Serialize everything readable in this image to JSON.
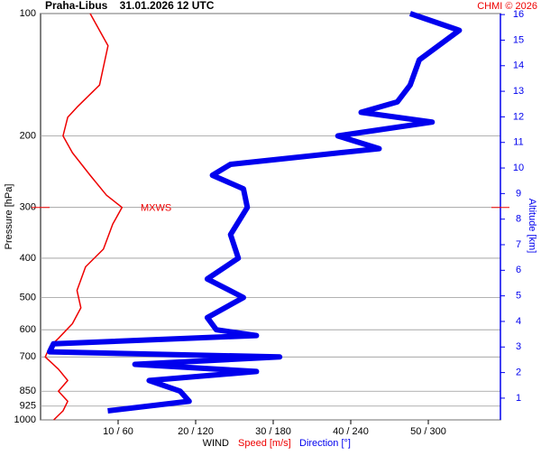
{
  "chart_data": {
    "type": "profile",
    "title": "Praha-Libus    31.01.2026 12 UTC",
    "credit": "CHMI © 2026",
    "ylabel": "Pressure [hPa]",
    "y2label": "Altitude [km]",
    "xlabel": "WIND",
    "annotation": "MXWS",
    "annotation_pressure": 300,
    "ylog": true,
    "ylim": [
      1000,
      100
    ],
    "yticks": [
      100,
      200,
      300,
      400,
      500,
      600,
      700,
      850,
      925,
      1000
    ],
    "y2lim": [
      0.15,
      16.04
    ],
    "y2ticks": [
      1,
      2,
      3,
      4,
      5,
      6,
      7,
      8,
      9,
      10,
      11,
      12,
      13,
      14,
      15,
      16
    ],
    "xlim": [
      0,
      59.3
    ],
    "x2lim": [
      0,
      355.8
    ],
    "xticks": [
      {
        "value": 10,
        "label": "10 / 60"
      },
      {
        "value": 20,
        "label": "20 / 120"
      },
      {
        "value": 30,
        "label": "30 / 180"
      },
      {
        "value": 40,
        "label": "40 / 240"
      },
      {
        "value": 50,
        "label": "50 / 300"
      }
    ],
    "grid": true,
    "series": [
      {
        "name": "Speed [m/s]",
        "color": "#ee0000",
        "width": 1.5,
        "pressure": [
          100,
          120,
          150,
          170,
          180,
          200,
          220,
          250,
          280,
          300,
          330,
          380,
          420,
          480,
          530,
          580,
          630,
          660,
          700,
          750,
          800,
          850,
          900,
          950,
          1000
        ],
        "values": [
          6.4,
          8.7,
          7.6,
          4.7,
          3.5,
          2.9,
          4.1,
          6.4,
          8.5,
          10.5,
          9.3,
          8.1,
          5.8,
          4.7,
          5.2,
          4.1,
          2.3,
          1.2,
          0.6,
          2.3,
          3.5,
          2.3,
          3.5,
          2.9,
          1.7
        ]
      },
      {
        "name": "Direction [°]",
        "color": "#0000ee",
        "width": 6,
        "axis": "x2",
        "pressure": [
          100,
          110,
          130,
          150,
          165,
          175,
          185,
          200,
          215,
          235,
          250,
          270,
          300,
          350,
          400,
          450,
          500,
          560,
          600,
          620,
          650,
          680,
          700,
          730,
          760,
          800,
          850,
          900,
          950
        ],
        "values": [
          286,
          324,
          293,
          286,
          276,
          248,
          303,
          230,
          262,
          147,
          133,
          157,
          160,
          147,
          153,
          129,
          157,
          129,
          136,
          167,
          10,
          7,
          185,
          73,
          167,
          84,
          108,
          115,
          52
        ]
      }
    ]
  }
}
